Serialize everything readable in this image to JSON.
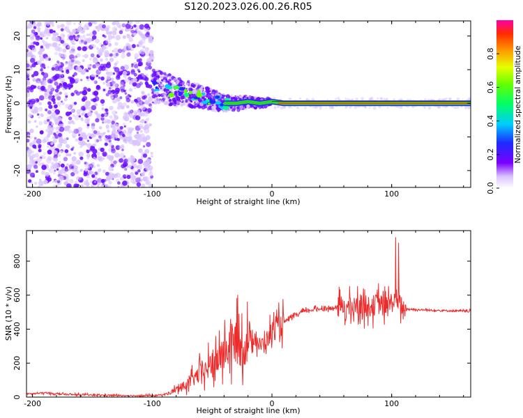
{
  "title": "S120.2023.026.00.26.R05",
  "colors": {
    "snr_line": "#ee2b2b",
    "ridge": "#2bd62b",
    "scatter_dense": "#6a0dff",
    "scatter_faint": "#d9c3ff"
  },
  "colorbar": {
    "label": "Normalized spectral amplitude",
    "ticks": [
      "0.0",
      "0.2",
      "0.4",
      "0.6",
      "0.8"
    ],
    "tick_values": [
      0.0,
      0.2,
      0.4,
      0.6,
      0.8
    ],
    "range": [
      0,
      1
    ]
  },
  "chart_data": [
    {
      "type": "heatmap",
      "xlabel": "Height of straight line (km)",
      "ylabel": "Frequency (Hz)",
      "xlim": [
        -205,
        166
      ],
      "ylim": [
        -25,
        24.5
      ],
      "xticks": [
        -200,
        -100,
        0,
        100
      ],
      "xtick_labels": [
        "-200",
        "-100",
        "0",
        "100"
      ],
      "yticks": [
        -20,
        -10,
        0,
        10,
        20
      ],
      "ytick_labels": [
        "-20",
        "-10",
        "0",
        "10",
        "20"
      ],
      "ridge": {
        "x": [
          -100,
          -90,
          -80,
          -70,
          -60,
          -50,
          -40,
          -30,
          -20,
          -10,
          0,
          10,
          50,
          90,
          100,
          166
        ],
        "y": [
          5,
          4.5,
          3.5,
          3,
          2,
          1,
          0,
          0,
          0.5,
          0,
          0.5,
          0,
          0,
          0,
          0,
          0
        ]
      }
    },
    {
      "type": "line",
      "xlabel": "Height of straight line (km)",
      "ylabel": "SNR (10 * v/v)",
      "xlim": [
        -205,
        166
      ],
      "ylim": [
        0,
        980
      ],
      "xticks": [
        -200,
        -100,
        0,
        100
      ],
      "xtick_labels": [
        "-200",
        "-100",
        "0",
        "100"
      ],
      "yticks": [
        0,
        200,
        400,
        600,
        800
      ],
      "ytick_labels": [
        "0",
        "200",
        "400",
        "600",
        "800"
      ],
      "series": [
        {
          "x": [
            -205,
            -190,
            -170,
            -150,
            -130,
            -110,
            -100,
            -90,
            -85,
            -80,
            -75,
            -70,
            -65,
            -60,
            -55,
            -50,
            -45,
            -40,
            -35,
            -30,
            -25,
            -20,
            -15,
            -10,
            -5,
            0,
            5,
            10,
            15,
            20,
            25,
            30,
            35,
            40,
            45,
            50,
            55,
            60,
            65,
            70,
            75,
            80,
            85,
            90,
            95,
            100,
            105,
            110,
            120,
            130,
            140,
            150,
            160,
            166
          ],
          "y": [
            18,
            25,
            15,
            12,
            10,
            8,
            8,
            15,
            25,
            45,
            60,
            80,
            110,
            140,
            160,
            190,
            220,
            260,
            300,
            330,
            290,
            330,
            360,
            300,
            330,
            390,
            410,
            440,
            460,
            480,
            500,
            510,
            515,
            520,
            525,
            520,
            530,
            540,
            520,
            530,
            550,
            530,
            540,
            550,
            520,
            560,
            580,
            520,
            515,
            512,
            510,
            508,
            506,
            505
          ]
        }
      ]
    }
  ]
}
